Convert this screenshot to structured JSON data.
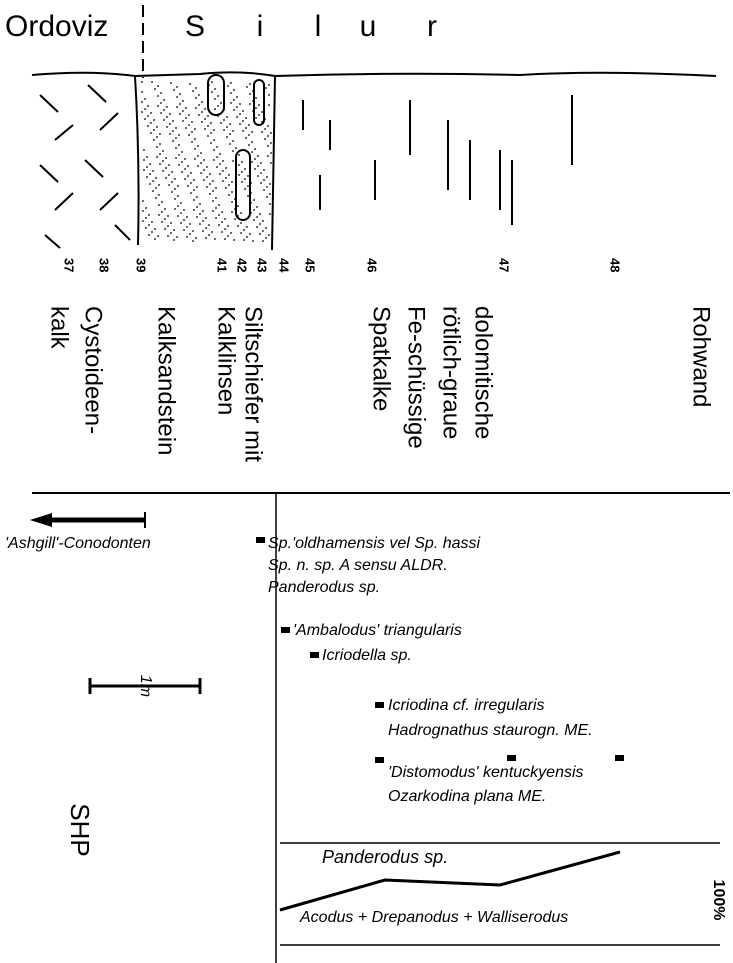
{
  "header": {
    "system_left": "Ordoviz",
    "system_right_letters": [
      "S",
      "i",
      "l",
      "u",
      "r"
    ]
  },
  "samples": [
    37,
    38,
    39,
    41,
    42,
    43,
    44,
    45,
    46,
    47,
    48
  ],
  "lithology": [
    {
      "lines": [
        "Cystoideen-",
        "kalk"
      ]
    },
    {
      "lines": [
        "Kalksandstein"
      ]
    },
    {
      "lines": [
        "Siltschiefer mit",
        "Kalklinsen"
      ]
    },
    {
      "lines": [
        "dolomitische",
        "rötlich-graue",
        "Fe-schüssige",
        "Spatkalke"
      ]
    },
    {
      "lines": [
        "Rohwand"
      ]
    }
  ],
  "conodonts": {
    "ashgill": "'Ashgill'-Conodonten",
    "entries": [
      "Sp.'oldhamensis vel Sp. hassi",
      "Sp. n. sp. A sensu ALDR.",
      "Panderodus sp.",
      "'Ambalodus' triangularis",
      "Icriodella sp.",
      "Icriodina cf. irregularis",
      "Hadrognathus staurogn. ME.",
      "'Distomodus' kentuckyensis",
      "Ozarkodina plana ME."
    ]
  },
  "scale": "1m",
  "symbol": "SHP",
  "abundance": {
    "upper": "Panderodus sp.",
    "lower": "Acodus + Drepanodus + Walliserodus",
    "percent": "100%"
  }
}
